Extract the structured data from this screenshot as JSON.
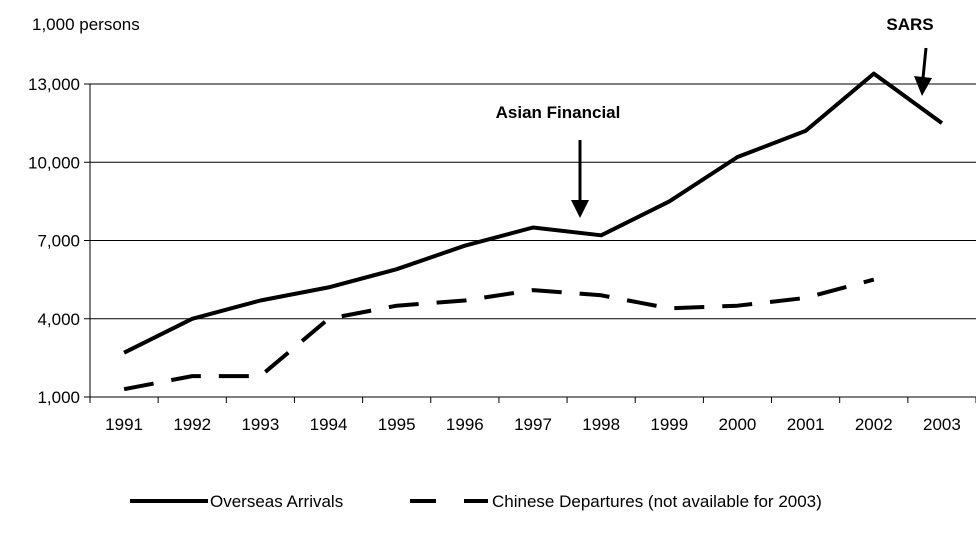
{
  "chart_data": {
    "type": "line",
    "title": "",
    "xlabel": "",
    "ylabel": "1,000 persons",
    "x": [
      "1991",
      "1992",
      "1993",
      "1994",
      "1995",
      "1996",
      "1997",
      "1998",
      "1999",
      "2000",
      "2001",
      "2002",
      "2003"
    ],
    "y_ticks": [
      "1,000",
      "4,000",
      "7,000",
      "10,000",
      "13,000"
    ],
    "y_tick_values": [
      1000,
      4000,
      7000,
      10000,
      13000
    ],
    "ylim": [
      1000,
      13000
    ],
    "grid": "horizontal",
    "legend_position": "bottom",
    "series": [
      {
        "name": "Overseas Arrivals",
        "style": "solid",
        "color": "#000000",
        "values": [
          2700,
          4000,
          4700,
          5200,
          5900,
          6800,
          7500,
          7200,
          8500,
          10200,
          11200,
          13400,
          11500
        ]
      },
      {
        "name": "Chinese Departures (not available for 2003)",
        "style": "dashed",
        "color": "#000000",
        "values": [
          1300,
          1800,
          1800,
          4000,
          4500,
          4700,
          5100,
          4900,
          4400,
          4500,
          4800,
          5500,
          null
        ]
      }
    ],
    "annotations": [
      {
        "text": "Asian Financial",
        "x": "1998"
      },
      {
        "text": "SARS",
        "x": "2003"
      }
    ]
  }
}
